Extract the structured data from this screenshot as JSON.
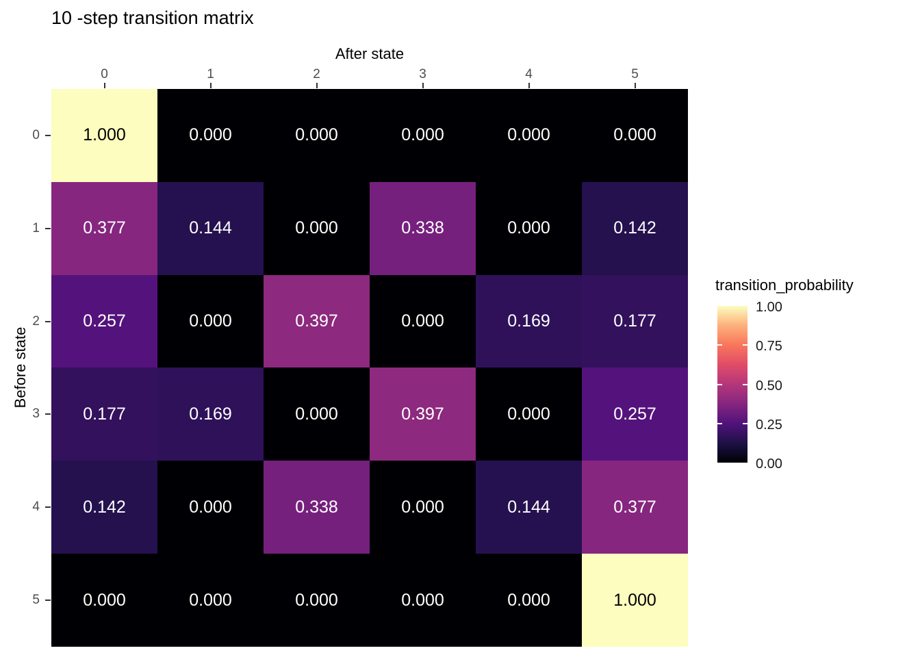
{
  "figure": {
    "title": "10 -step transition matrix"
  },
  "chart_data": {
    "type": "heatmap",
    "title": "10 -step transition matrix",
    "xlabel": "After state",
    "ylabel": "Before state",
    "x_categories": [
      "0",
      "1",
      "2",
      "3",
      "4",
      "5"
    ],
    "y_categories": [
      "0",
      "1",
      "2",
      "3",
      "4",
      "5"
    ],
    "values": [
      [
        1.0,
        0.0,
        0.0,
        0.0,
        0.0,
        0.0
      ],
      [
        0.377,
        0.144,
        0.0,
        0.338,
        0.0,
        0.142
      ],
      [
        0.257,
        0.0,
        0.397,
        0.0,
        0.169,
        0.177
      ],
      [
        0.177,
        0.169,
        0.0,
        0.397,
        0.0,
        0.257
      ],
      [
        0.142,
        0.0,
        0.338,
        0.0,
        0.144,
        0.377
      ],
      [
        0.0,
        0.0,
        0.0,
        0.0,
        0.0,
        1.0
      ]
    ],
    "value_format_decimals": 3,
    "legend_title": "transition_probability",
    "legend_tick_labels": [
      "1.00",
      "0.75",
      "0.50",
      "0.25",
      "0.00"
    ],
    "legend_tick_values": [
      1.0,
      0.75,
      0.5,
      0.25,
      0.0
    ],
    "legend_minor_tick_values": [
      0.75,
      0.5,
      0.25
    ],
    "colorscale": {
      "name": "magma",
      "range": [
        0,
        1
      ],
      "stops": [
        [
          0.0,
          "#000004"
        ],
        [
          0.125,
          "#1d1147"
        ],
        [
          0.25,
          "#51127c"
        ],
        [
          0.375,
          "#85267f"
        ],
        [
          0.5,
          "#b5367a"
        ],
        [
          0.625,
          "#e04c67"
        ],
        [
          0.75,
          "#f8765c"
        ],
        [
          0.875,
          "#fdb07a"
        ],
        [
          1.0,
          "#fcfdbf"
        ]
      ]
    },
    "cell_label_colors": {
      "light": "#ffffff",
      "dark": "#000000",
      "dark_threshold": 0.9
    },
    "axis_tick_label_color": "#4d4d4d",
    "tick_mark_color": "#333333",
    "background": "#ffffff",
    "grid": false,
    "legend_position": "right"
  }
}
